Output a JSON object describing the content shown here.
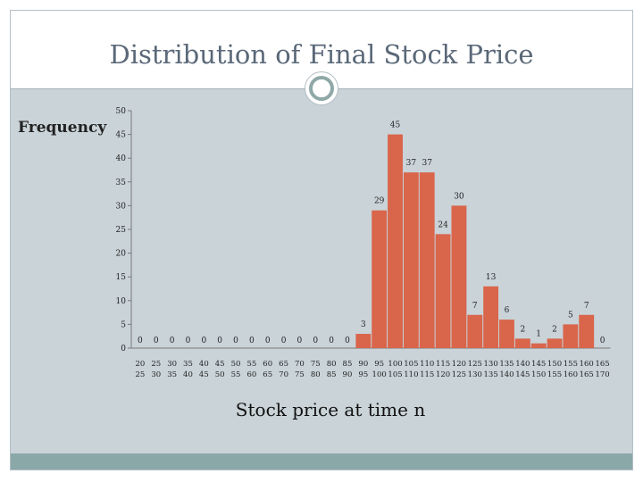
{
  "slide": {
    "title": "Distribution of Final Stock Price"
  },
  "chart_data": {
    "type": "bar",
    "title": "Distribution of Final Stock Price",
    "xlabel": "Stock price at time n",
    "ylabel": "Frequency",
    "ylim": [
      0,
      50
    ],
    "yticks": [
      0,
      5,
      10,
      15,
      20,
      25,
      30,
      35,
      40,
      45,
      50
    ],
    "categories": [
      "20 25",
      "25 30",
      "30 35",
      "35 40",
      "40 45",
      "45 50",
      "50 55",
      "55 60",
      "60 65",
      "65 70",
      "70 75",
      "75 80",
      "80 85",
      "85 90",
      "90 95",
      "95 100",
      "100 105",
      "105 110",
      "110 115",
      "115 120",
      "120 125",
      "125 130",
      "130 135",
      "135 140",
      "140 145",
      "145 150",
      "150 155",
      "155 160",
      "160 165",
      "165 170"
    ],
    "values": [
      0,
      0,
      0,
      0,
      0,
      0,
      0,
      0,
      0,
      0,
      0,
      0,
      0,
      0,
      3,
      29,
      45,
      37,
      37,
      24,
      30,
      7,
      13,
      6,
      2,
      1,
      2,
      5,
      7,
      0
    ],
    "bar_color": "#d9654b",
    "grid": false,
    "legend": "none"
  }
}
